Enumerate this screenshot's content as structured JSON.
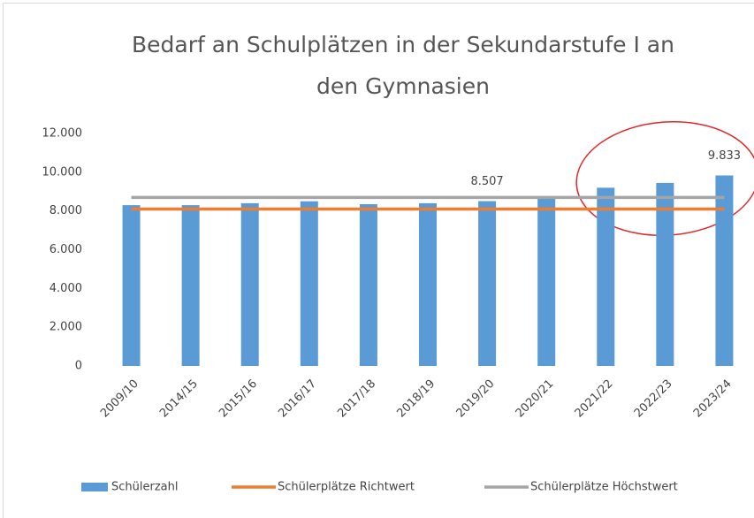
{
  "chart_data": {
    "type": "bar",
    "title": [
      "Bedarf an Schulplätzen in der Sekundarstufe I an",
      "den Gymnasien"
    ],
    "categories": [
      "2009/10",
      "2014/15",
      "2015/16",
      "2016/17",
      "2017/18",
      "2018/19",
      "2019/20",
      "2020/21",
      "2021/22",
      "2022/23",
      "2023/24"
    ],
    "series": [
      {
        "name": "Schülerzahl",
        "type": "bar",
        "color": "#5b9bd5",
        "values": [
          8300,
          8300,
          8400,
          8500,
          8350,
          8400,
          8507,
          8700,
          9200,
          9450,
          9833
        ],
        "value_labels": [
          null,
          null,
          null,
          null,
          null,
          null,
          "8.507",
          null,
          null,
          null,
          "9.833"
        ]
      },
      {
        "name": "Schülerplätze Richtwert",
        "type": "line",
        "color": "#ed7d31",
        "values": [
          8100,
          8100,
          8100,
          8100,
          8100,
          8100,
          8100,
          8100,
          8100,
          8100,
          8100
        ]
      },
      {
        "name": "Schülerplätze Höchstwert",
        "type": "line",
        "color": "#a5a5a5",
        "values": [
          8700,
          8700,
          8700,
          8700,
          8700,
          8700,
          8700,
          8700,
          8700,
          8700,
          8700
        ]
      }
    ],
    "ylim": [
      0,
      12000
    ],
    "yticks": [
      0,
      {
        "value": 2000,
        "label": "2.000"
      },
      {
        "value": 4000,
        "label": "4.000"
      },
      {
        "value": 6000,
        "label": "6.000"
      },
      {
        "value": 8000,
        "label": "8.000"
      },
      {
        "value": 10000,
        "label": "10.000"
      },
      {
        "value": 12000,
        "label": "12.000"
      }
    ],
    "grid": false,
    "legend": "bottom"
  }
}
